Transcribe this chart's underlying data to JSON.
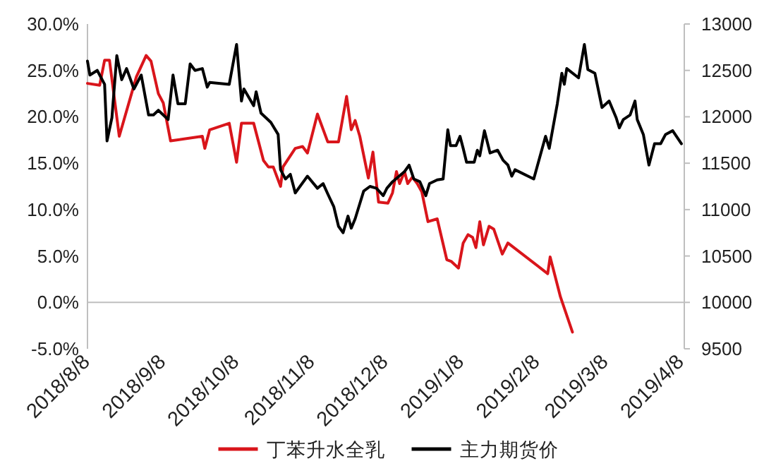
{
  "chart_data": {
    "type": "line",
    "legend": "bottom",
    "grid": false,
    "xlim": [
      "2018-08-06T20:00",
      "2019-04-08"
    ],
    "xticks": [
      {
        "value": "2018-08-08",
        "label": "2018/8/8"
      },
      {
        "value": "2018-09-08",
        "label": "2018/9/8"
      },
      {
        "value": "2018-10-08",
        "label": "2018/10/8"
      },
      {
        "value": "2018-11-08",
        "label": "2018/11/8"
      },
      {
        "value": "2018-12-08",
        "label": "2018/12/8"
      },
      {
        "value": "2019-01-08",
        "label": "2019/1/8"
      },
      {
        "value": "2019-02-08",
        "label": "2019/2/8"
      },
      {
        "value": "2019-03-08",
        "label": "2019/3/8"
      },
      {
        "value": "2019-04-08",
        "label": "2019/4/8"
      }
    ],
    "ylim": [
      -5,
      30
    ],
    "yticks": [
      {
        "value": -5,
        "label": "-5.0%"
      },
      {
        "value": 0,
        "label": "0.0%"
      },
      {
        "value": 5,
        "label": "5.0%"
      },
      {
        "value": 10,
        "label": "10.0%"
      },
      {
        "value": 15,
        "label": "15.0%"
      },
      {
        "value": 20,
        "label": "20.0%"
      },
      {
        "value": 25,
        "label": "25.0%"
      },
      {
        "value": 30,
        "label": "30.0%"
      }
    ],
    "y2lim": [
      9500,
      13000
    ],
    "y2ticks": [
      9500,
      10000,
      10500,
      11000,
      11500,
      12000,
      12500,
      13000
    ],
    "series": [
      {
        "name": "丁苯升水全乳",
        "color": "#d9151b",
        "x": [
          "2018-08-06T20:00",
          "2018-08-11T20:00",
          "2018-08-13T20:00",
          "2018-08-15T20:00",
          "2018-08-19T20:00",
          "2018-08-26T20:00",
          "2018-08-30T20:00",
          "2018-09-01T20:00",
          "2018-09-04T20:00",
          "2018-09-06T20:00",
          "2018-09-09T20:00",
          "2018-09-22T20:00",
          "2018-09-23T20:00",
          "2018-09-25T20:00",
          "2018-10-03T20:00",
          "2018-10-06T20:00",
          "2018-10-08T20:00",
          "2018-10-13T20:00",
          "2018-10-17T20:00",
          "2018-10-19T20:00",
          "2018-10-21T20:00",
          "2018-10-24T20:00",
          "2018-10-25T20:00",
          "2018-10-30T20:00",
          "2018-11-02T20:00",
          "2018-11-04T20:00",
          "2018-11-08T22:00",
          "2018-11-13T03:00",
          "2018-11-17T13:00",
          "2018-11-20T20:00",
          "2018-11-22T18:00",
          "2018-11-24T08:00",
          "2018-11-26T06:00",
          "2018-11-29T18:00",
          "2018-12-01T15:00",
          "2018-12-03T22:00",
          "2018-12-07T18:00",
          "2018-12-09T15:00",
          "2018-12-11T06:00",
          "2018-12-12T13:00",
          "2018-12-14T13:00",
          "2018-12-15T20:00",
          "2018-12-17T18:00",
          "2018-12-19T18:00",
          "2018-12-21T15:00",
          "2018-12-24T03:00",
          "2018-12-27T22:00",
          "2018-12-31T20:00",
          "2019-01-02T18:00",
          "2019-01-05T15:00",
          "2019-01-07T13:00",
          "2019-01-09T13:00",
          "2019-01-11T10:00",
          "2019-01-12T18:00",
          "2019-01-14T08:00",
          "2019-01-15T20:00",
          "2019-01-18T03:00",
          "2019-01-20T01:00",
          "2019-01-23T13:00",
          "2019-01-25T20:00",
          "2019-02-11T03:00",
          "2019-02-12T03:00",
          "2019-02-16T08:00",
          "2019-02-21T06:00"
        ],
        "values": [
          23.6,
          23.4,
          26.1,
          26.1,
          17.9,
          24.3,
          26.6,
          26.0,
          22.5,
          21.5,
          17.4,
          17.9,
          16.6,
          18.6,
          19.3,
          15.1,
          19.3,
          19.3,
          15.3,
          14.6,
          14.6,
          12.5,
          14.6,
          16.6,
          16.8,
          16.1,
          20.3,
          17.3,
          17.3,
          22.2,
          18.6,
          19.6,
          17.9,
          13.4,
          16.2,
          10.8,
          10.7,
          11.8,
          14.1,
          12.8,
          14.1,
          12.8,
          13.5,
          12.8,
          11.9,
          8.7,
          9.0,
          4.6,
          4.4,
          3.7,
          6.4,
          7.3,
          7.0,
          5.9,
          8.7,
          6.2,
          8.2,
          7.9,
          5.2,
          6.4,
          3.1,
          4.9,
          0.6,
          -3.2
        ]
      },
      {
        "name": "主力期货价",
        "color": "#000000",
        "axis": "y2",
        "x": [
          "2018-08-06T20:00",
          "2018-08-07T20:00",
          "2018-08-10T20:00",
          "2018-08-13T20:00",
          "2018-08-14T20:00",
          "2018-08-16T20:00",
          "2018-08-18T20:00",
          "2018-08-20T20:00",
          "2018-08-22T20:00",
          "2018-08-25T20:00",
          "2018-08-28T20:00",
          "2018-08-31T20:00",
          "2018-09-02T20:00",
          "2018-09-04T20:00",
          "2018-09-08T20:00",
          "2018-09-10T20:00",
          "2018-09-12T20:00",
          "2018-09-15T20:00",
          "2018-09-17T20:00",
          "2018-09-19T20:00",
          "2018-09-22T20:00",
          "2018-09-24T20:00",
          "2018-09-25T20:00",
          "2018-10-03T20:00",
          "2018-10-06T20:00",
          "2018-10-08T20:00",
          "2018-10-09T20:00",
          "2018-10-13T20:00",
          "2018-10-14T20:00",
          "2018-10-16T20:00",
          "2018-10-20T20:00",
          "2018-10-23T20:00",
          "2018-10-24T20:00",
          "2018-10-26T20:00",
          "2018-10-28T20:00",
          "2018-10-30T20:00",
          "2018-11-04T20:00",
          "2018-11-08T22:00",
          "2018-11-11T06:00",
          "2018-11-13T03:00",
          "2018-11-15T15:00",
          "2018-11-17T13:00",
          "2018-11-19T10:00",
          "2018-11-21T10:00",
          "2018-11-22T18:00",
          "2018-11-24T08:00",
          "2018-11-27T20:00",
          "2018-11-30T10:00",
          "2018-12-03T01:00",
          "2018-12-05T20:00",
          "2018-12-07T08:00",
          "2018-12-09T15:00",
          "2018-12-14T13:00",
          "2018-12-16T10:00",
          "2018-12-18T08:00",
          "2018-12-20T20:00",
          "2018-12-23T06:00",
          "2018-12-24T18:00",
          "2018-12-27T22:00",
          "2018-12-30T08:00",
          "2019-01-01T06:00",
          "2019-01-02T08:00",
          "2019-01-04T15:00",
          "2019-01-06T06:00",
          "2019-01-07T13:00",
          "2019-01-08T22:00",
          "2019-01-12T01:00",
          "2019-01-13T08:00",
          "2019-01-14T08:00",
          "2019-01-16T06:00",
          "2019-01-18T13:00",
          "2019-01-21T15:00",
          "2019-01-23T22:00",
          "2019-01-25T20:00",
          "2019-01-27T10:00",
          "2019-01-28T18:00",
          "2019-02-05T10:00",
          "2019-02-10T06:00",
          "2019-02-11T18:00",
          "2019-02-15T01:00",
          "2019-02-16T22:00",
          "2019-02-17T22:00",
          "2019-02-18T22:00",
          "2019-02-23T18:00",
          "2019-02-26T03:00",
          "2019-02-27T13:00",
          "2019-03-02T10:00",
          "2019-03-05T08:00",
          "2019-03-08T06:00",
          "2019-03-11T03:00",
          "2019-03-12T10:00",
          "2019-03-14T01:00",
          "2019-03-16T20:00",
          "2019-03-18T20:00",
          "2019-03-19T18:00",
          "2019-03-22T06:00",
          "2019-03-24T13:00",
          "2019-03-26T20:00",
          "2019-03-29T08:00",
          "2019-03-31T08:00",
          "2019-04-03T06:00",
          "2019-04-06T20:00"
        ],
        "values": [
          12600,
          12450,
          12500,
          12350,
          11740,
          11990,
          12660,
          12400,
          12520,
          12300,
          12450,
          12020,
          12020,
          12070,
          11970,
          12450,
          12140,
          12140,
          12570,
          12500,
          12520,
          12320,
          12370,
          12350,
          12780,
          12170,
          12300,
          12120,
          12270,
          12040,
          11940,
          11810,
          11430,
          11330,
          11380,
          11180,
          11360,
          11230,
          11280,
          11170,
          11030,
          10820,
          10750,
          10930,
          10800,
          10900,
          11200,
          11250,
          11230,
          11150,
          11230,
          11300,
          11410,
          11480,
          11330,
          11300,
          11150,
          11280,
          11320,
          11330,
          11860,
          11690,
          11690,
          11790,
          11660,
          11510,
          11510,
          11640,
          11580,
          11850,
          11610,
          11640,
          11530,
          11480,
          11360,
          11430,
          11330,
          11790,
          11660,
          12140,
          12470,
          12350,
          12520,
          12420,
          12780,
          12510,
          12470,
          12100,
          12170,
          11990,
          11880,
          11970,
          12020,
          12170,
          11970,
          11810,
          11480,
          11710,
          11710,
          11810,
          11850,
          11710
        ]
      }
    ]
  }
}
